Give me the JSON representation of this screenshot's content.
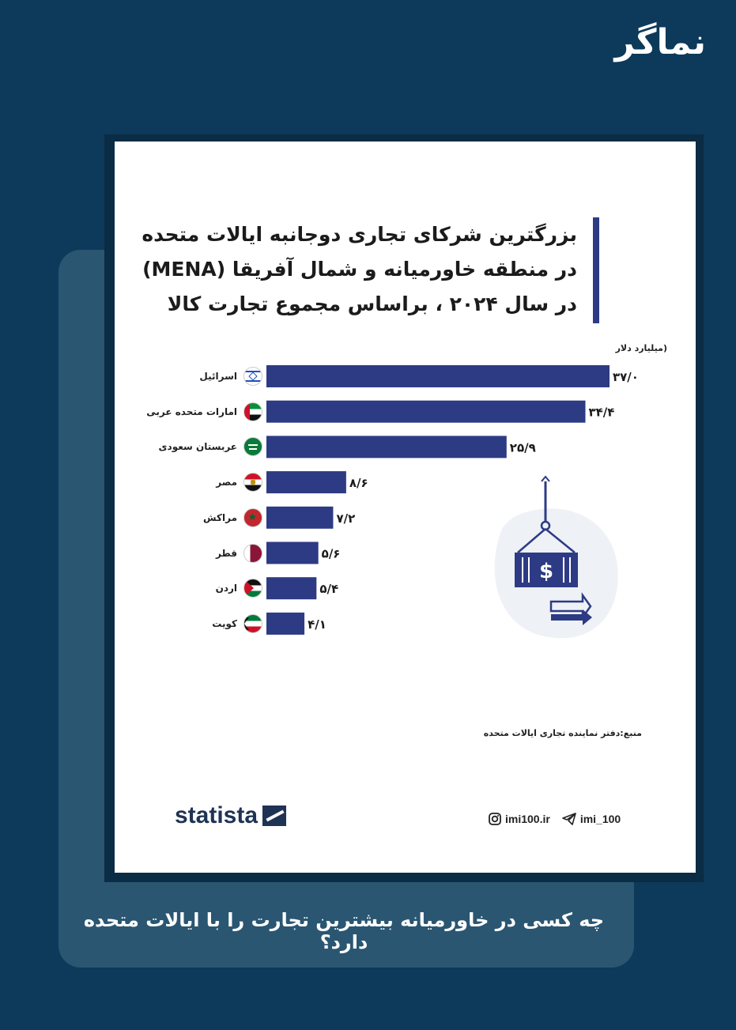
{
  "brand": {
    "logo_text": "نماگر"
  },
  "chart_data": {
    "type": "bar",
    "title": "بزرگترین شرکای تجاری دوجانبه ایالات متحده\nدر منطقه خاورمیانه و شمال آفریقا (MENA)\nدر سال ۲۰۲۴ ، براساس مجموع تجارت کالا",
    "unit": "(میلیارد دلار",
    "categories": [
      "اسرائیل",
      "امارات متحده عربی",
      "عربستان سعودی",
      "مصر",
      "مراکش",
      "قطر",
      "اردن",
      "کویت"
    ],
    "values": [
      37.0,
      34.4,
      25.9,
      8.6,
      7.2,
      5.6,
      5.4,
      4.1
    ],
    "value_labels": [
      "۳۷/۰",
      "۳۴/۴",
      "۲۵/۹",
      "۸/۶",
      "۷/۲",
      "۵/۶",
      "۵/۴",
      "۴/۱"
    ],
    "flag_icons": [
      "israel-flag-icon",
      "uae-flag-icon",
      "saudi-flag-icon",
      "egypt-flag-icon",
      "morocco-flag-icon",
      "qatar-flag-icon",
      "jordan-flag-icon",
      "kuwait-flag-icon"
    ],
    "xlim": [
      0,
      37
    ],
    "bar_color": "#2d3b84",
    "grid": false
  },
  "source": "منبع:دفتر نماینده تجاری ایالات متحده",
  "footer": {
    "statista_text": "statista",
    "instagram_handle": "imi100.ir",
    "telegram_handle": "imi_100"
  },
  "question": "چه کسی در خاورمیانه بیشترین تجارت را با ایالات متحده دارد؟",
  "colors": {
    "background": "#0d3a5a",
    "panel": "#2a5672",
    "card": "#ffffff",
    "accent": "#2d3b84"
  }
}
